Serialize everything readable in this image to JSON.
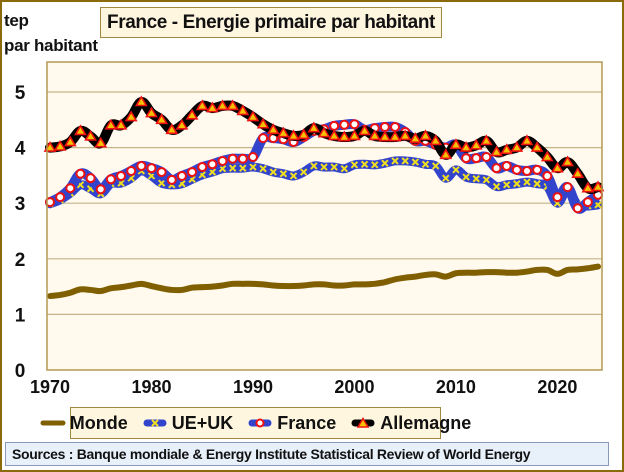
{
  "chart_data": {
    "type": "line",
    "title": "France - Energie primaire par habitant",
    "ylabel": "tep par habitant",
    "ylabel_lines": [
      "tep",
      "par habitant"
    ],
    "xlabel": "",
    "ylim": [
      0,
      5.5
    ],
    "xlim": [
      1970,
      2024
    ],
    "yticks": [
      "0",
      "1",
      "2",
      "3",
      "4",
      "5"
    ],
    "xticks": [
      "1970",
      "1980",
      "1990",
      "2000",
      "2010",
      "2020"
    ],
    "grid": true,
    "legend_position": "bottom",
    "x": [
      1970,
      1971,
      1972,
      1973,
      1974,
      1975,
      1976,
      1977,
      1978,
      1979,
      1980,
      1981,
      1982,
      1983,
      1984,
      1985,
      1986,
      1987,
      1988,
      1989,
      1990,
      1991,
      1992,
      1993,
      1994,
      1995,
      1996,
      1997,
      1998,
      1999,
      2000,
      2001,
      2002,
      2003,
      2004,
      2005,
      2006,
      2007,
      2008,
      2009,
      2010,
      2011,
      2012,
      2013,
      2014,
      2015,
      2016,
      2017,
      2018,
      2019,
      2020,
      2021,
      2022,
      2023,
      2024
    ],
    "series": [
      {
        "name": "Monde",
        "color": "#7f5f00",
        "marker": "none",
        "values": [
          1.33,
          1.35,
          1.39,
          1.45,
          1.44,
          1.42,
          1.47,
          1.49,
          1.52,
          1.55,
          1.51,
          1.47,
          1.44,
          1.44,
          1.48,
          1.49,
          1.5,
          1.52,
          1.55,
          1.55,
          1.55,
          1.54,
          1.52,
          1.51,
          1.51,
          1.52,
          1.54,
          1.54,
          1.52,
          1.52,
          1.54,
          1.54,
          1.55,
          1.58,
          1.63,
          1.66,
          1.68,
          1.71,
          1.72,
          1.68,
          1.74,
          1.75,
          1.75,
          1.76,
          1.76,
          1.75,
          1.75,
          1.77,
          1.8,
          1.8,
          1.73,
          1.8,
          1.81,
          1.83,
          1.86
        ]
      },
      {
        "name": "UE+UK",
        "color": "#3344cc",
        "marker": "yellow-x",
        "values": [
          2.99,
          3.06,
          3.18,
          3.33,
          3.26,
          3.17,
          3.35,
          3.36,
          3.45,
          3.58,
          3.49,
          3.36,
          3.33,
          3.35,
          3.43,
          3.51,
          3.56,
          3.62,
          3.63,
          3.63,
          3.65,
          3.62,
          3.56,
          3.53,
          3.49,
          3.56,
          3.67,
          3.65,
          3.65,
          3.62,
          3.69,
          3.7,
          3.69,
          3.72,
          3.76,
          3.76,
          3.74,
          3.7,
          3.67,
          3.45,
          3.6,
          3.47,
          3.44,
          3.42,
          3.3,
          3.33,
          3.35,
          3.38,
          3.35,
          3.3,
          3.0,
          3.24,
          2.97,
          2.95,
          2.97
        ]
      },
      {
        "name": "France",
        "color": "#3344cc",
        "marker": "red-white-circle",
        "values": [
          3.02,
          3.11,
          3.27,
          3.53,
          3.45,
          3.25,
          3.43,
          3.49,
          3.58,
          3.67,
          3.63,
          3.56,
          3.42,
          3.49,
          3.56,
          3.65,
          3.7,
          3.76,
          3.8,
          3.8,
          3.83,
          4.17,
          4.17,
          4.15,
          4.1,
          4.19,
          4.3,
          4.33,
          4.39,
          4.41,
          4.42,
          4.32,
          4.35,
          4.37,
          4.37,
          4.28,
          4.12,
          4.12,
          4.05,
          4.0,
          4.05,
          3.81,
          3.81,
          3.83,
          3.63,
          3.67,
          3.6,
          3.58,
          3.6,
          3.49,
          3.11,
          3.29,
          2.91,
          3.02,
          3.15
        ]
      },
      {
        "name": "Allemagne",
        "color": "#000000",
        "marker": "red-yellow-triangle",
        "values": [
          4.0,
          4.02,
          4.1,
          4.3,
          4.2,
          4.08,
          4.4,
          4.4,
          4.55,
          4.82,
          4.62,
          4.5,
          4.32,
          4.4,
          4.58,
          4.75,
          4.71,
          4.75,
          4.75,
          4.66,
          4.55,
          4.42,
          4.32,
          4.26,
          4.21,
          4.23,
          4.35,
          4.26,
          4.21,
          4.19,
          4.21,
          4.3,
          4.21,
          4.19,
          4.19,
          4.21,
          4.16,
          4.21,
          4.12,
          3.87,
          4.05,
          4.0,
          4.04,
          4.12,
          3.92,
          3.96,
          4.0,
          4.12,
          4.0,
          3.83,
          3.63,
          3.74,
          3.53,
          3.27,
          3.29
        ]
      }
    ]
  },
  "legend": {
    "items": [
      {
        "label": "Monde",
        "icon": "brown-line-swatch"
      },
      {
        "label": "UE+UK",
        "icon": "blue-line-yellow-x-swatch"
      },
      {
        "label": "France",
        "icon": "blue-line-red-circle-swatch"
      },
      {
        "label": "Allemagne",
        "icon": "black-line-red-triangle-swatch"
      }
    ]
  },
  "sources": "Sources : Banque mondiale & Energy Institute Statistical Review of World Energy",
  "colors": {
    "frame": "#8a6a0a",
    "plot_background": "#fff9ee",
    "gridline": "#c4b48a",
    "title_background": "#fff6e0",
    "sources_background": "#e8f0fa"
  }
}
